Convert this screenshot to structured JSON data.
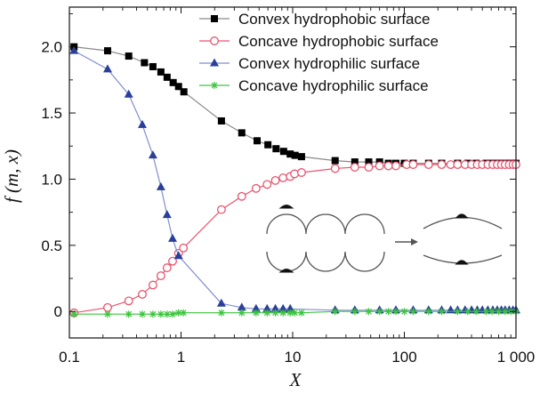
{
  "chart_data": {
    "type": "line",
    "title": "",
    "xlabel": "X",
    "ylabel": "f (m, x)",
    "xscale": "log",
    "xlim": [
      0.1,
      1000
    ],
    "ylim": [
      -0.2,
      2.3
    ],
    "x_ticks": [
      0.1,
      1,
      10,
      100,
      1000
    ],
    "x_tick_labels": [
      "0.1",
      "1",
      "10",
      "100",
      "1 000"
    ],
    "y_ticks": [
      0,
      0.5,
      1.0,
      1.5,
      2.0
    ],
    "y_tick_labels": [
      "0",
      "0.5",
      "1.0",
      "1.5",
      "2.0"
    ],
    "grid": false,
    "legend_position": "top-right",
    "series": [
      {
        "name": "Convex hydrophobic surface",
        "color": "#000000",
        "line_color": "#8a8a8a",
        "marker": "square-filled",
        "x": [
          0.11,
          0.22,
          0.34,
          0.47,
          0.56,
          0.66,
          0.75,
          0.85,
          0.95,
          1.06,
          2.3,
          3.5,
          4.8,
          6.0,
          7.1,
          8.3,
          9.5,
          10.5,
          12.0,
          24,
          36,
          48,
          60,
          72,
          84,
          100,
          120,
          165,
          216,
          300,
          370,
          440,
          540,
          610,
          700,
          800,
          900,
          1000
        ],
        "y": [
          2.0,
          1.97,
          1.93,
          1.88,
          1.85,
          1.81,
          1.77,
          1.73,
          1.7,
          1.66,
          1.44,
          1.35,
          1.29,
          1.26,
          1.23,
          1.21,
          1.19,
          1.18,
          1.17,
          1.14,
          1.13,
          1.13,
          1.13,
          1.12,
          1.12,
          1.12,
          1.12,
          1.12,
          1.12,
          1.12,
          1.12,
          1.12,
          1.12,
          1.12,
          1.12,
          1.12,
          1.12,
          1.12
        ]
      },
      {
        "name": "Concave hydrophobic surface",
        "color": "#e8556f",
        "line_color": "#e8556f",
        "marker": "circle-open",
        "x": [
          0.11,
          0.22,
          0.34,
          0.45,
          0.56,
          0.66,
          0.75,
          0.84,
          0.95,
          1.05,
          2.3,
          3.5,
          4.7,
          5.9,
          7.0,
          8.2,
          9.5,
          10.4,
          12.0,
          24,
          36,
          48,
          60,
          72,
          84,
          105,
          120,
          165,
          216,
          260,
          300,
          350,
          400,
          450,
          500,
          560,
          620,
          680,
          740,
          800,
          870,
          940,
          1000
        ],
        "y": [
          -0.01,
          0.03,
          0.08,
          0.13,
          0.2,
          0.27,
          0.33,
          0.38,
          0.44,
          0.48,
          0.77,
          0.87,
          0.93,
          0.96,
          0.99,
          1.01,
          1.02,
          1.04,
          1.05,
          1.08,
          1.09,
          1.09,
          1.1,
          1.1,
          1.1,
          1.11,
          1.11,
          1.11,
          1.11,
          1.11,
          1.11,
          1.11,
          1.11,
          1.11,
          1.11,
          1.11,
          1.11,
          1.11,
          1.11,
          1.11,
          1.11,
          1.11,
          1.11
        ]
      },
      {
        "name": "Convex hydrophilic surface",
        "color": "#2a3f9a",
        "line_color": "#7f8fd0",
        "marker": "triangle-filled",
        "x": [
          0.11,
          0.22,
          0.34,
          0.45,
          0.56,
          0.66,
          0.75,
          0.84,
          0.95,
          2.3,
          3.5,
          4.7,
          5.9,
          7.0,
          8.2,
          9.5,
          24,
          36,
          60,
          84,
          120,
          165,
          216,
          260,
          300,
          350,
          400,
          450,
          500,
          560,
          620,
          680,
          740,
          800,
          870,
          940,
          1000
        ],
        "y": [
          1.97,
          1.83,
          1.64,
          1.41,
          1.18,
          0.94,
          0.73,
          0.55,
          0.42,
          0.06,
          0.03,
          0.02,
          0.02,
          0.02,
          0.02,
          0.02,
          0.01,
          0.01,
          0.01,
          0.01,
          0.01,
          0.01,
          0.01,
          0.01,
          0.01,
          0.01,
          0.01,
          0.01,
          0.01,
          0.01,
          0.01,
          0.01,
          0.01,
          0.01,
          0.01,
          0.01,
          0.01
        ]
      },
      {
        "name": "Concave hydrophilic surface",
        "color": "#3cc43c",
        "line_color": "#3cc43c",
        "marker": "star",
        "x": [
          0.11,
          0.22,
          0.34,
          0.45,
          0.56,
          0.66,
          0.75,
          0.84,
          0.95,
          1.05,
          2.3,
          3.5,
          4.7,
          5.9,
          7.0,
          8.2,
          9.5,
          10.4,
          12.0,
          24,
          36,
          48,
          60,
          72,
          84,
          100,
          120,
          165,
          216,
          300,
          370,
          440,
          540,
          610,
          700,
          800,
          900,
          1000
        ],
        "y": [
          -0.02,
          -0.02,
          -0.02,
          -0.02,
          -0.02,
          -0.02,
          -0.02,
          -0.02,
          -0.01,
          -0.01,
          -0.01,
          -0.01,
          -0.01,
          -0.01,
          -0.01,
          -0.01,
          -0.01,
          -0.01,
          -0.01,
          0.0,
          0.0,
          0.0,
          0.0,
          0.0,
          0.0,
          0.0,
          0.0,
          0.0,
          0.0,
          0.0,
          0.0,
          0.0,
          0.0,
          0.0,
          0.0,
          0.0,
          0.0,
          0.0
        ]
      }
    ]
  }
}
